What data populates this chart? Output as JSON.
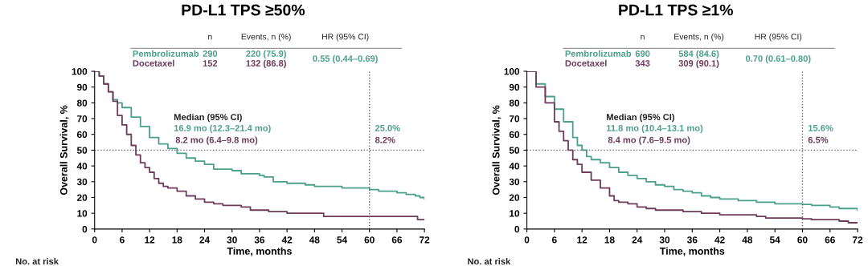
{
  "chart_data": [
    {
      "type": "step",
      "title": "PD-L1 TPS ≥50%",
      "xlabel": "Time, months",
      "ylabel": "Overall Survival, %",
      "xlim": [
        0,
        72
      ],
      "xticks": [
        0,
        6,
        12,
        18,
        24,
        30,
        36,
        42,
        48,
        54,
        60,
        66,
        72
      ],
      "ylim": [
        0,
        100
      ],
      "yticks": [
        0,
        10,
        20,
        30,
        40,
        50,
        60,
        70,
        80,
        90,
        100
      ],
      "grid": false,
      "legend": false,
      "series": [
        {
          "name": "Pembrolizumab",
          "color": "#4aa08c",
          "x": [
            0,
            1,
            2,
            3,
            4,
            5,
            6,
            8,
            10,
            12,
            14,
            16,
            18,
            20,
            22,
            24,
            26,
            28,
            30,
            32,
            34,
            36,
            37,
            39,
            42,
            46,
            48,
            52,
            54,
            58,
            60,
            62,
            64,
            66,
            68,
            70,
            71,
            72
          ],
          "values": [
            100,
            97,
            92,
            87,
            82,
            80,
            77,
            71,
            65,
            58,
            54,
            51,
            48,
            45,
            43,
            41,
            38,
            38,
            37,
            35,
            35,
            34,
            33,
            30,
            29,
            28,
            27,
            27,
            26,
            26,
            25,
            24,
            24,
            23,
            22,
            21,
            20,
            19
          ]
        },
        {
          "name": "Docetaxel",
          "color": "#6e3b5c",
          "x": [
            0,
            1,
            2,
            3,
            4,
            5,
            6,
            7,
            8,
            9,
            10,
            11,
            12,
            13,
            14,
            15,
            16,
            18,
            20,
            22,
            24,
            26,
            28,
            30,
            32,
            34,
            36,
            38,
            40,
            42,
            44,
            48,
            50,
            60,
            70,
            70.5,
            72
          ],
          "values": [
            100,
            97,
            92,
            87,
            81,
            72,
            66,
            60,
            53,
            47,
            42,
            39,
            36,
            32,
            29,
            27,
            26,
            24,
            21,
            19,
            17,
            16,
            15,
            15,
            14,
            12,
            12,
            11,
            11,
            10,
            10,
            10,
            8,
            8,
            8,
            6,
            6
          ]
        }
      ],
      "ref_lines": [
        {
          "axis": "y",
          "value": 50,
          "line_style": "dotted"
        },
        {
          "axis": "x",
          "value": 60,
          "line_style": "dotted"
        }
      ],
      "annotations": [
        "n",
        "Events, n (%)",
        "HR (95% CI)",
        "290",
        "220 (75.9)",
        "152",
        "132 (86.8)",
        "0.55 (0.44–0.69)",
        "Median (95% CI)",
        "16.9 mo (12.3–21.4 mo)",
        "8.2 mo (6.4–9.8 mo)",
        "25.0%",
        "8.2%",
        "No. at risk"
      ]
    },
    {
      "type": "step",
      "title": "PD-L1 TPS ≥1%",
      "xlabel": "Time, months",
      "ylabel": "Overall Survival, %",
      "xlim": [
        0,
        72
      ],
      "xticks": [
        0,
        6,
        12,
        18,
        24,
        30,
        36,
        42,
        48,
        54,
        60,
        66,
        72
      ],
      "ylim": [
        0,
        100
      ],
      "yticks": [
        0,
        10,
        20,
        30,
        40,
        50,
        60,
        70,
        80,
        90,
        100
      ],
      "grid": false,
      "legend": false,
      "series": [
        {
          "name": "Pembrolizumab",
          "color": "#4aa08c",
          "x": [
            0,
            2,
            4,
            6,
            8,
            10,
            11,
            12,
            13,
            14,
            16,
            18,
            20,
            22,
            24,
            26,
            28,
            30,
            32,
            34,
            36,
            38,
            40,
            42,
            46,
            50,
            54,
            58,
            60,
            62,
            64,
            66,
            68,
            70,
            72
          ],
          "values": [
            100,
            92,
            84,
            76,
            68,
            58,
            53,
            50,
            46,
            44,
            42,
            39,
            36,
            34,
            32,
            30,
            28,
            27,
            25,
            24,
            23,
            21,
            20,
            19,
            18,
            17,
            16,
            16,
            15.6,
            15,
            15,
            14,
            13,
            13,
            12
          ]
        },
        {
          "name": "Docetaxel",
          "color": "#6e3b5c",
          "x": [
            0,
            2,
            4,
            6,
            7,
            8,
            9,
            10,
            11,
            12,
            14,
            16,
            18,
            19,
            20,
            22,
            24,
            26,
            28,
            32,
            34,
            38,
            40,
            42,
            48,
            50,
            52,
            54,
            58,
            60,
            62,
            66,
            68,
            70,
            72
          ],
          "values": [
            100,
            90,
            80,
            68,
            62,
            56,
            50,
            44,
            41,
            36,
            31,
            26,
            21,
            18,
            17,
            16,
            14,
            13,
            12,
            12,
            11,
            10,
            10,
            9,
            9,
            8,
            7,
            7,
            7,
            6.5,
            6,
            6,
            5,
            4,
            4
          ]
        }
      ],
      "ref_lines": [
        {
          "axis": "y",
          "value": 50,
          "line_style": "dotted"
        },
        {
          "axis": "x",
          "value": 60,
          "line_style": "dotted"
        }
      ],
      "annotations": [
        "n",
        "Events, n (%)",
        "HR (95% CI)",
        "690",
        "584 (84.6)",
        "343",
        "309 (90.1)",
        "0.70 (0.61–0.80)",
        "Median (95% CI)",
        "11.8 mo (10.4–13.1 mo)",
        "8.4 mo (7.6–9.5 mo)",
        "15.6%",
        "6.5%",
        "No. at risk"
      ]
    }
  ]
}
